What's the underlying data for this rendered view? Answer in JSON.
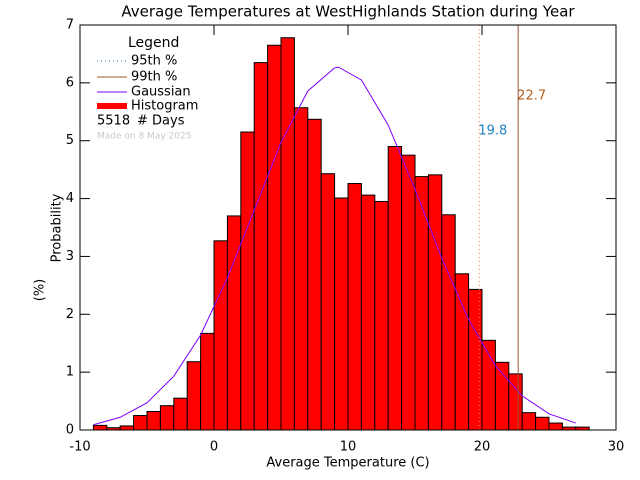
{
  "chart_data": {
    "type": "histogram",
    "title": "Average Temperatures at WestHighlands Station during Year",
    "xlabel": "Average Temperature (C)",
    "ylabel_lines": [
      "Probability",
      "(%)"
    ],
    "bins": [
      -9,
      -8,
      -7,
      -6,
      -5,
      -4,
      -3,
      -2,
      -1,
      0,
      1,
      2,
      3,
      4,
      5,
      6,
      7,
      8,
      9,
      10,
      11,
      12,
      13,
      14,
      15,
      16,
      17,
      18,
      19,
      20,
      21,
      22,
      23,
      24,
      25,
      26,
      27,
      28
    ],
    "values": [
      0.08,
      0.04,
      0.07,
      0.25,
      0.32,
      0.42,
      0.55,
      1.18,
      1.67,
      3.27,
      3.7,
      5.15,
      6.35,
      6.65,
      6.78,
      5.57,
      5.37,
      4.43,
      4.01,
      4.26,
      4.06,
      3.95,
      4.9,
      4.75,
      4.38,
      4.41,
      3.72,
      2.7,
      2.43,
      1.55,
      1.17,
      0.97,
      0.3,
      0.22,
      0.12,
      0.05,
      0.05
    ],
    "name": "Histogram",
    "color": "#ff0000",
    "xlim": [
      -10,
      30
    ],
    "ylim": [
      0,
      7
    ],
    "xticks": [
      -10,
      0,
      10,
      20,
      30
    ],
    "yticks": [
      0,
      1,
      2,
      3,
      4,
      5,
      6,
      7
    ],
    "gaussian": {
      "name": "Gaussian",
      "color": "#7f00ff",
      "x": [
        -9,
        -7,
        -5,
        -3,
        -1,
        1,
        3,
        5,
        7,
        9,
        9.3,
        11,
        13,
        15,
        17,
        19,
        21,
        23,
        25,
        27
      ],
      "values": [
        0.09,
        0.22,
        0.47,
        0.93,
        1.64,
        2.63,
        3.8,
        4.97,
        5.86,
        6.26,
        6.27,
        6.05,
        5.27,
        4.16,
        2.97,
        1.91,
        1.11,
        0.59,
        0.28,
        0.12
      ]
    },
    "percentiles": [
      {
        "name": "95th %",
        "value": 19.8,
        "color": "#e0804a",
        "legend_color": "#2080c0",
        "label_color": "#2080c0",
        "dash": "1,3"
      },
      {
        "name": "99th %",
        "value": 22.7,
        "color": "#a0522d",
        "legend_color": "#a0522d",
        "label_color": "#b06020",
        "dash": ""
      }
    ],
    "legend": {
      "title": "Legend",
      "count": 5518,
      "count_label": "# Days"
    },
    "note": "Made on 8 May 2025"
  }
}
